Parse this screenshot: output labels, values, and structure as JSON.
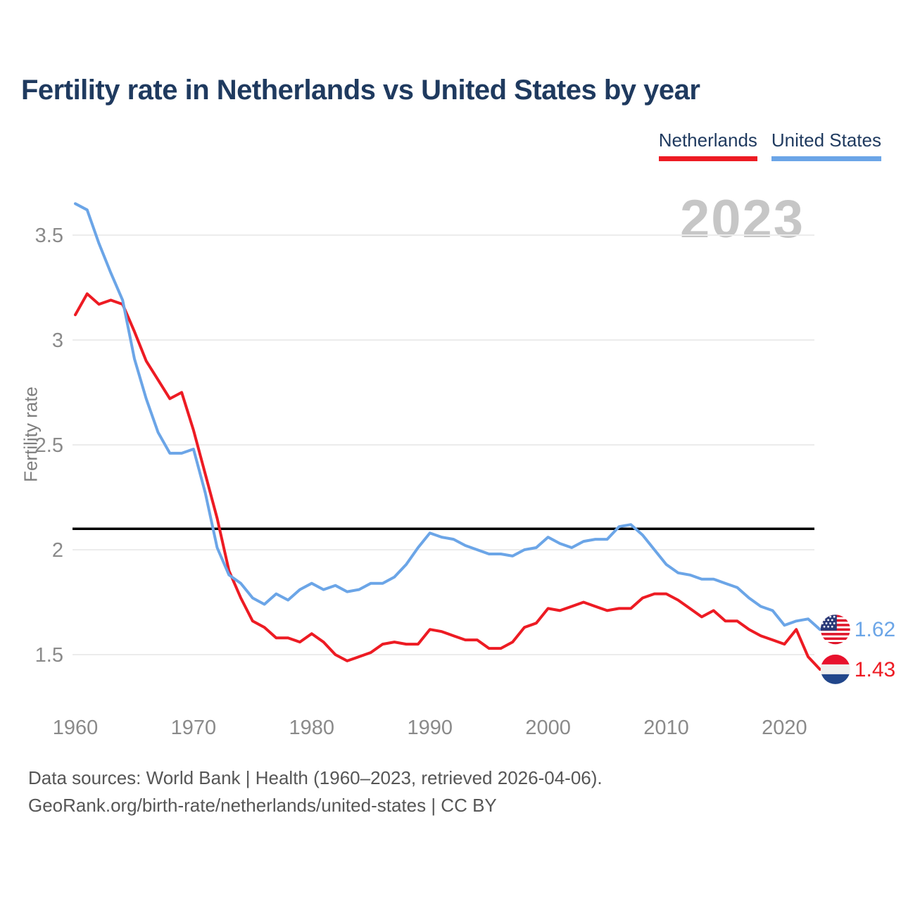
{
  "title": "Fertility rate in Netherlands vs United States by year",
  "watermark": "2023",
  "legend": {
    "netherlands": {
      "label": "Netherlands",
      "color": "#ed1b23"
    },
    "united_states": {
      "label": "United States",
      "color": "#6ba5e7"
    }
  },
  "y_axis": {
    "label": "Fertility rate",
    "ticks": [
      1.5,
      2,
      2.5,
      3,
      3.5
    ]
  },
  "x_axis": {
    "ticks": [
      1960,
      1970,
      1980,
      1990,
      2000,
      2010,
      2020
    ]
  },
  "reference_line": {
    "value": 2.1,
    "color": "#000000"
  },
  "end_labels": {
    "united_states": {
      "value": "1.62",
      "flag": "us-flag-icon"
    },
    "netherlands": {
      "value": "1.43",
      "flag": "netherlands-flag-icon"
    }
  },
  "footer": {
    "line1": "Data sources: World Bank | Health (1960–2023, retrieved 2026-04-06).",
    "line2": "GeoRank.org/birth-rate/netherlands/united-states | CC BY"
  },
  "chart_data": {
    "type": "line",
    "title": "Fertility rate in Netherlands vs United States by year",
    "xlabel": "",
    "ylabel": "Fertility rate",
    "xlim": [
      1960,
      2023
    ],
    "ylim": [
      1.35,
      3.75
    ],
    "grid": "horizontal-only",
    "legend_position": "top-right",
    "annotations": {
      "replacement_level_line": 2.1,
      "watermark_year": "2023"
    },
    "x": [
      1960,
      1961,
      1962,
      1963,
      1964,
      1965,
      1966,
      1967,
      1968,
      1969,
      1970,
      1971,
      1972,
      1973,
      1974,
      1975,
      1976,
      1977,
      1978,
      1979,
      1980,
      1981,
      1982,
      1983,
      1984,
      1985,
      1986,
      1987,
      1988,
      1989,
      1990,
      1991,
      1992,
      1993,
      1994,
      1995,
      1996,
      1997,
      1998,
      1999,
      2000,
      2001,
      2002,
      2003,
      2004,
      2005,
      2006,
      2007,
      2008,
      2009,
      2010,
      2011,
      2012,
      2013,
      2014,
      2015,
      2016,
      2017,
      2018,
      2019,
      2020,
      2021,
      2022,
      2023
    ],
    "series": [
      {
        "name": "Netherlands",
        "color": "#ed1b23",
        "values": [
          3.12,
          3.22,
          3.17,
          3.19,
          3.17,
          3.04,
          2.9,
          2.81,
          2.72,
          2.75,
          2.57,
          2.36,
          2.15,
          1.9,
          1.77,
          1.66,
          1.63,
          1.58,
          1.58,
          1.56,
          1.6,
          1.56,
          1.5,
          1.47,
          1.49,
          1.51,
          1.55,
          1.56,
          1.55,
          1.55,
          1.62,
          1.61,
          1.59,
          1.57,
          1.57,
          1.53,
          1.53,
          1.56,
          1.63,
          1.65,
          1.72,
          1.71,
          1.73,
          1.75,
          1.73,
          1.71,
          1.72,
          1.72,
          1.77,
          1.79,
          1.79,
          1.76,
          1.72,
          1.68,
          1.71,
          1.66,
          1.66,
          1.62,
          1.59,
          1.57,
          1.55,
          1.62,
          1.49,
          1.43
        ]
      },
      {
        "name": "United States",
        "color": "#6ba5e7",
        "values": [
          3.65,
          3.62,
          3.46,
          3.32,
          3.19,
          2.91,
          2.72,
          2.56,
          2.46,
          2.46,
          2.48,
          2.27,
          2.01,
          1.88,
          1.84,
          1.77,
          1.74,
          1.79,
          1.76,
          1.81,
          1.84,
          1.81,
          1.83,
          1.8,
          1.81,
          1.84,
          1.84,
          1.87,
          1.93,
          2.01,
          2.08,
          2.06,
          2.05,
          2.02,
          2.0,
          1.98,
          1.98,
          1.97,
          2.0,
          2.01,
          2.06,
          2.03,
          2.01,
          2.04,
          2.05,
          2.05,
          2.11,
          2.12,
          2.07,
          2.0,
          1.93,
          1.89,
          1.88,
          1.86,
          1.86,
          1.84,
          1.82,
          1.77,
          1.73,
          1.71,
          1.64,
          1.66,
          1.67,
          1.62
        ]
      }
    ]
  }
}
